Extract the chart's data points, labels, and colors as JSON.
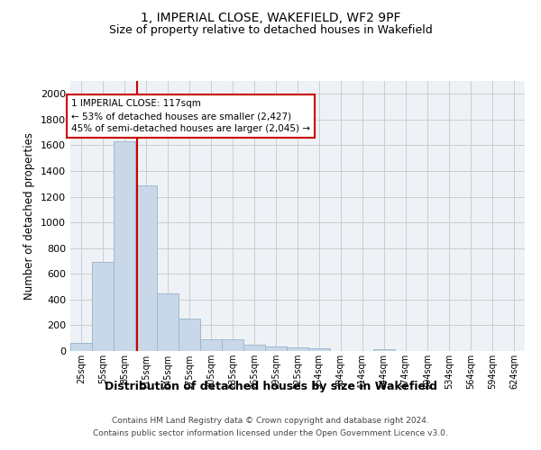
{
  "title": "1, IMPERIAL CLOSE, WAKEFIELD, WF2 9PF",
  "subtitle": "Size of property relative to detached houses in Wakefield",
  "xlabel": "Distribution of detached houses by size in Wakefield",
  "ylabel": "Number of detached properties",
  "footer_line1": "Contains HM Land Registry data © Crown copyright and database right 2024.",
  "footer_line2": "Contains public sector information licensed under the Open Government Licence v3.0.",
  "bar_edges": [
    25,
    55,
    85,
    115,
    145,
    175,
    205,
    235,
    265,
    295,
    325,
    354,
    384,
    414,
    444,
    474,
    504,
    534,
    564,
    594,
    624
  ],
  "bar_labels": [
    "25sqm",
    "55sqm",
    "85sqm",
    "115sqm",
    "145sqm",
    "175sqm",
    "205sqm",
    "235sqm",
    "265sqm",
    "295sqm",
    "325sqm",
    "354sqm",
    "384sqm",
    "414sqm",
    "444sqm",
    "474sqm",
    "504sqm",
    "534sqm",
    "564sqm",
    "594sqm",
    "624sqm"
  ],
  "bar_values": [
    65,
    690,
    1630,
    1285,
    445,
    255,
    90,
    90,
    50,
    35,
    30,
    20,
    0,
    0,
    15,
    0,
    0,
    0,
    0,
    0,
    0
  ],
  "bar_color": "#c8d8e8",
  "bar_edgecolor": "#a0b8cc",
  "grid_color": "#cccccc",
  "property_size": 117,
  "vline_color": "#cc0000",
  "annotation_line1": "1 IMPERIAL CLOSE: 117sqm",
  "annotation_line2": "← 53% of detached houses are smaller (2,427)",
  "annotation_line3": "45% of semi-detached houses are larger (2,045) →",
  "ylim": [
    0,
    2100
  ],
  "yticks": [
    0,
    200,
    400,
    600,
    800,
    1000,
    1200,
    1400,
    1600,
    1800,
    2000
  ],
  "background_color": "#ffffff",
  "plot_background": "#eef2f7"
}
